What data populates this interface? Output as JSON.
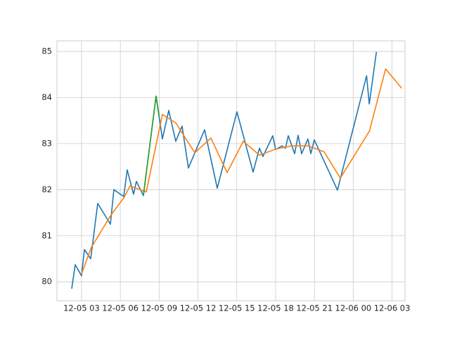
{
  "chart_data": {
    "type": "line",
    "xlim": [
      1.1,
      28.0
    ],
    "ylim": [
      79.59,
      85.23
    ],
    "xticks": [
      {
        "value": 3,
        "label": "12-05 03"
      },
      {
        "value": 6,
        "label": "12-05 06"
      },
      {
        "value": 9,
        "label": "12-05 09"
      },
      {
        "value": 12,
        "label": "12-05 12"
      },
      {
        "value": 15,
        "label": "12-05 15"
      },
      {
        "value": 18,
        "label": "12-05 18"
      },
      {
        "value": 21,
        "label": "12-05 21"
      },
      {
        "value": 24,
        "label": "12-06 00"
      },
      {
        "value": 27,
        "label": "12-06 03"
      }
    ],
    "yticks": [
      80,
      81,
      82,
      83,
      84,
      85
    ],
    "grid": true,
    "series": [
      {
        "color": "#1f77b4",
        "x": [
          2.24,
          2.51,
          3.0,
          3.22,
          3.71,
          4.25,
          5.23,
          5.5,
          6.26,
          6.53,
          7.02,
          7.24,
          7.78,
          8.76,
          9.25,
          9.74,
          10.28,
          10.77,
          11.26,
          12.51,
          13.49,
          15.01,
          16.26,
          16.75,
          17.02,
          17.78,
          18.0,
          18.49,
          18.76,
          18.98,
          19.47,
          19.74,
          20.01,
          20.5,
          20.72,
          20.99,
          22.78,
          25.03,
          25.24,
          25.79
        ],
        "values": [
          79.85,
          80.37,
          80.13,
          80.7,
          80.5,
          81.7,
          81.25,
          82.0,
          81.85,
          82.43,
          81.9,
          82.18,
          81.87,
          84.03,
          83.1,
          83.72,
          83.05,
          83.38,
          82.47,
          83.3,
          82.03,
          83.69,
          82.38,
          82.9,
          82.72,
          83.17,
          82.87,
          82.95,
          82.9,
          83.17,
          82.78,
          83.18,
          82.78,
          83.1,
          82.78,
          83.08,
          81.99,
          84.47,
          83.86,
          84.99
        ]
      },
      {
        "color": "#ff7f0e",
        "x": [
          3.0,
          3.76,
          5.28,
          6.26,
          6.75,
          8.0,
          9.25,
          10.28,
          11.75,
          13.0,
          14.25,
          15.5,
          16.75,
          18.0,
          19.25,
          20.5,
          21.75,
          23.0,
          25.25,
          26.5,
          27.75
        ],
        "values": [
          80.17,
          80.75,
          81.45,
          81.82,
          82.08,
          81.95,
          83.63,
          83.45,
          82.8,
          83.12,
          82.37,
          83.05,
          82.75,
          82.88,
          82.95,
          82.95,
          82.82,
          82.25,
          83.27,
          84.62,
          84.2
        ]
      },
      {
        "color": "#2ca02c",
        "x": [
          7.78,
          8.76,
          9.0
        ],
        "values": [
          81.87,
          84.03,
          83.6
        ]
      }
    ]
  }
}
